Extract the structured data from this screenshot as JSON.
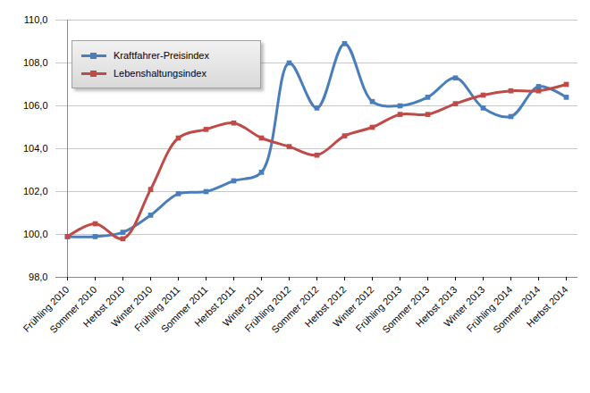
{
  "chart_data": {
    "type": "line",
    "categories": [
      "Frühling 2010",
      "Sommer 2010",
      "Herbst 2010",
      "Winter 2010",
      "Frühling 2011",
      "Sommer 2011",
      "Herbst 2011",
      "Winter 2011",
      "Frühling 2012",
      "Sommer 2012",
      "Herbst 2012",
      "Winter 2012",
      "Frühling 2013",
      "Sommer 2013",
      "Herbst 2013",
      "Winter 2013",
      "Frühling 2014",
      "Sommer 2014",
      "Herbst 2014"
    ],
    "series": [
      {
        "name": "Kraftfahrer-Preisindex",
        "color": "#4a7ebb",
        "marker": "square",
        "values": [
          99.9,
          99.9,
          100.1,
          100.9,
          101.9,
          102.0,
          102.5,
          102.9,
          108.0,
          105.9,
          108.9,
          106.2,
          106.0,
          106.4,
          107.3,
          105.9,
          105.5,
          106.9,
          106.4
        ]
      },
      {
        "name": "Lebenshaltungsindex",
        "color": "#be4b48",
        "marker": "square",
        "values": [
          99.9,
          100.5,
          99.8,
          102.1,
          104.5,
          104.9,
          105.2,
          104.5,
          104.1,
          103.7,
          104.6,
          105.0,
          105.6,
          105.6,
          106.1,
          106.5,
          106.7,
          106.7,
          107.0
        ]
      }
    ],
    "ylim": [
      98,
      110
    ],
    "yticks": [
      {
        "value": 98,
        "label": "98,0"
      },
      {
        "value": 100,
        "label": "100,0"
      },
      {
        "value": 102,
        "label": "102,0"
      },
      {
        "value": 104,
        "label": "104,0"
      },
      {
        "value": 106,
        "label": "106,0"
      },
      {
        "value": 108,
        "label": "108,0"
      },
      {
        "value": 110,
        "label": "110,0"
      }
    ],
    "grid": true,
    "legend": "top-left"
  }
}
